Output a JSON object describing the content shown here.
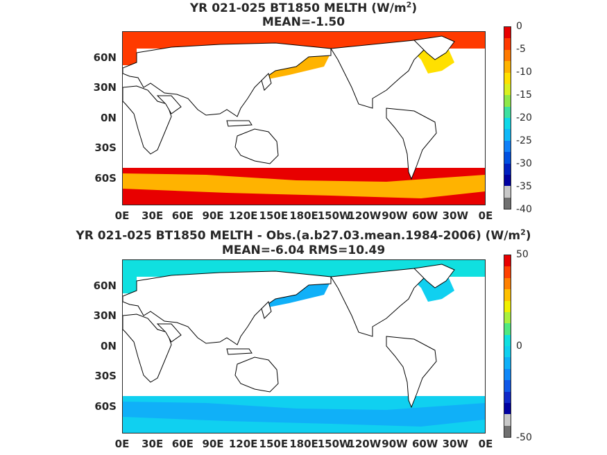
{
  "top": {
    "title_main": "YR 021-025 BT1850  MELTH (W/m",
    "title_exp": "2",
    "title_close": ")",
    "subtitle": "MEAN=-1.50",
    "colorbar": {
      "min": -40,
      "max": 0,
      "tick_labels": [
        "0",
        "-5",
        "-10",
        "-15",
        "-20",
        "-25",
        "-30",
        "-35",
        "-40"
      ],
      "colors": [
        "#e80000",
        "#ff3a00",
        "#ff7a00",
        "#ffb300",
        "#ffe000",
        "#d9f020",
        "#8ee84a",
        "#3ee0a0",
        "#10d8e8",
        "#10b8f8",
        "#1080f8",
        "#0050e0",
        "#0020c0",
        "#0000a0",
        "#c8c8c8",
        "#707070"
      ]
    },
    "fills": {
      "north_pacific_bering": "#ffb300",
      "north_atlantic_labrador": "#ffe000",
      "arctic_margin": "#ff3a00",
      "southern_ocean_outer": "#e80000",
      "southern_ocean_inner": "#ffb300"
    }
  },
  "bottom": {
    "title_line1": "YR 021-025 BT1850 MELTH - Obs.(a.b27.03.mean.1984-2006) (W/m",
    "title_exp": "2",
    "title_close": ")",
    "subtitle": "MEAN=-6.04 RMS=10.49",
    "colorbar": {
      "min": -50,
      "max": 50,
      "tick_labels": [
        "50",
        "0",
        "-50"
      ],
      "colors": [
        "#e80000",
        "#ff4000",
        "#ff8000",
        "#ffc000",
        "#f0f000",
        "#a8f040",
        "#50e880",
        "#10e0e0",
        "#10d0f0",
        "#10b0f8",
        "#1088f8",
        "#1058e8",
        "#1028c8",
        "#0000a0",
        "#c8c8c8",
        "#707070"
      ]
    },
    "fills": {
      "north_pacific_bering": "#10b0f8",
      "north_atlantic_labrador": "#10d0f0",
      "arctic_margin": "#10e0e0",
      "southern_ocean_outer": "#10d0f0",
      "southern_ocean_inner": "#10b0f8"
    }
  },
  "axes": {
    "lat_labels": [
      "60N",
      "30N",
      "0N",
      "30S",
      "60S"
    ],
    "lon_labels": [
      "0E",
      "30E",
      "60E",
      "90E",
      "120E",
      "150E",
      "180E",
      "150W",
      "120W",
      "90W",
      "60W",
      "30W",
      "0E"
    ]
  }
}
